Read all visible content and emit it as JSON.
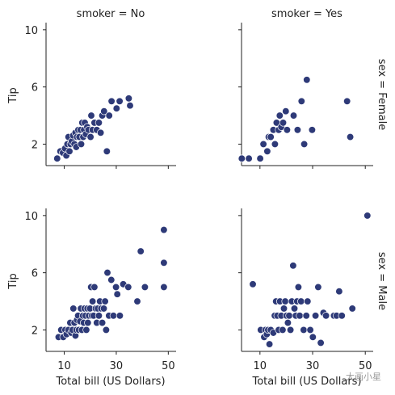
{
  "chart_data": {
    "type": "scatter",
    "layout": "facet-grid",
    "col_titles": [
      "smoker = No",
      "smoker = Yes"
    ],
    "row_titles": [
      "sex = Female",
      "sex = Male"
    ],
    "xlabel": "Total bill (US Dollars)",
    "ylabel": "Tip",
    "xlim": [
      3,
      53
    ],
    "ylim": [
      0.5,
      10.5
    ],
    "xticks": [
      10,
      30,
      50
    ],
    "yticks": [
      2,
      6,
      10
    ],
    "marker_color": "#2e3a78",
    "marker_edge_color": "#ffffff",
    "grid": false,
    "facets": [
      {
        "row": "sex = Female",
        "col": "smoker = No",
        "points": [
          [
            7.3,
            1.0
          ],
          [
            8.5,
            1.5
          ],
          [
            9.5,
            1.4
          ],
          [
            10.3,
            1.7
          ],
          [
            10.8,
            1.2
          ],
          [
            11.2,
            2.0
          ],
          [
            11.6,
            2.5
          ],
          [
            12.0,
            1.5
          ],
          [
            12.4,
            2.0
          ],
          [
            12.9,
            2.2
          ],
          [
            13.4,
            2.6
          ],
          [
            13.9,
            2.0
          ],
          [
            14.3,
            2.8
          ],
          [
            14.6,
            1.8
          ],
          [
            14.9,
            2.5
          ],
          [
            15.4,
            3.0
          ],
          [
            15.8,
            2.5
          ],
          [
            16.3,
            3.0
          ],
          [
            16.5,
            2.0
          ],
          [
            16.9,
            3.5
          ],
          [
            17.3,
            2.5
          ],
          [
            17.6,
            3.0
          ],
          [
            17.9,
            3.5
          ],
          [
            18.3,
            2.7
          ],
          [
            18.8,
            3.2
          ],
          [
            19.3,
            3.0
          ],
          [
            20.1,
            2.5
          ],
          [
            20.4,
            4.0
          ],
          [
            20.9,
            3.0
          ],
          [
            21.6,
            3.5
          ],
          [
            22.5,
            3.0
          ],
          [
            23.3,
            3.5
          ],
          [
            24.0,
            2.8
          ],
          [
            24.6,
            4.0
          ],
          [
            25.3,
            4.3
          ],
          [
            26.4,
            1.5
          ],
          [
            27.3,
            4.0
          ],
          [
            28.2,
            5.0
          ],
          [
            30.1,
            4.5
          ],
          [
            31.3,
            5.0
          ],
          [
            34.8,
            5.2
          ],
          [
            35.3,
            4.7
          ]
        ]
      },
      {
        "row": "sex = Female",
        "col": "smoker = Yes",
        "points": [
          [
            3.1,
            1.0
          ],
          [
            5.8,
            1.0
          ],
          [
            10.1,
            1.0
          ],
          [
            11.3,
            2.0
          ],
          [
            12.8,
            1.5
          ],
          [
            13.3,
            2.5
          ],
          [
            14.1,
            2.5
          ],
          [
            15.1,
            3.0
          ],
          [
            15.7,
            2.0
          ],
          [
            16.3,
            3.5
          ],
          [
            17.1,
            3.0
          ],
          [
            17.5,
            4.0
          ],
          [
            18.1,
            3.2
          ],
          [
            18.8,
            3.5
          ],
          [
            19.8,
            4.3
          ],
          [
            20.3,
            3.0
          ],
          [
            22.8,
            4.0
          ],
          [
            24.3,
            3.0
          ],
          [
            25.8,
            5.0
          ],
          [
            26.8,
            2.0
          ],
          [
            27.8,
            6.5
          ],
          [
            29.8,
            3.0
          ],
          [
            43.1,
            5.0
          ],
          [
            44.3,
            2.5
          ]
        ]
      },
      {
        "row": "sex = Male",
        "col": "smoker = No",
        "points": [
          [
            7.8,
            1.5
          ],
          [
            8.8,
            2.0
          ],
          [
            9.6,
            1.5
          ],
          [
            10.4,
            2.0
          ],
          [
            10.9,
            1.7
          ],
          [
            11.6,
            2.0
          ],
          [
            12.3,
            2.5
          ],
          [
            12.7,
            1.8
          ],
          [
            13.2,
            2.0
          ],
          [
            13.5,
            3.5
          ],
          [
            13.9,
            2.5
          ],
          [
            14.3,
            1.6
          ],
          [
            14.7,
            2.0
          ],
          [
            14.9,
            2.7
          ],
          [
            15.3,
            3.0
          ],
          [
            15.6,
            2.0
          ],
          [
            16.1,
            2.6
          ],
          [
            16.4,
            3.5
          ],
          [
            16.8,
            2.0
          ],
          [
            17.2,
            3.0
          ],
          [
            17.5,
            2.5
          ],
          [
            17.8,
            3.5
          ],
          [
            18.2,
            3.0
          ],
          [
            18.5,
            2.0
          ],
          [
            18.9,
            3.5
          ],
          [
            19.1,
            2.5
          ],
          [
            19.5,
            3.0
          ],
          [
            19.9,
            3.5
          ],
          [
            20.3,
            5.0
          ],
          [
            20.6,
            3.0
          ],
          [
            20.9,
            4.0
          ],
          [
            21.3,
            3.0
          ],
          [
            21.6,
            5.0
          ],
          [
            22.1,
            3.5
          ],
          [
            22.5,
            2.5
          ],
          [
            22.9,
            3.5
          ],
          [
            23.3,
            3.0
          ],
          [
            23.7,
            4.0
          ],
          [
            24.2,
            3.5
          ],
          [
            24.6,
            2.5
          ],
          [
            25.2,
            3.5
          ],
          [
            25.7,
            4.0
          ],
          [
            26.1,
            2.0
          ],
          [
            26.6,
            6.0
          ],
          [
            27.2,
            3.0
          ],
          [
            28.1,
            5.5
          ],
          [
            28.9,
            3.0
          ],
          [
            29.9,
            5.0
          ],
          [
            30.4,
            4.5
          ],
          [
            31.4,
            3.0
          ],
          [
            32.7,
            5.2
          ],
          [
            34.6,
            5.0
          ],
          [
            38.1,
            4.0
          ],
          [
            39.4,
            7.5
          ],
          [
            41.0,
            5.0
          ],
          [
            48.3,
            9.0
          ],
          [
            48.3,
            6.7
          ],
          [
            48.3,
            5.0
          ]
        ]
      },
      {
        "row": "sex = Male",
        "col": "smoker = Yes",
        "points": [
          [
            7.3,
            5.2
          ],
          [
            10.3,
            2.0
          ],
          [
            11.6,
            1.5
          ],
          [
            12.1,
            2.0
          ],
          [
            12.6,
            1.7
          ],
          [
            13.1,
            2.0
          ],
          [
            13.6,
            1.0
          ],
          [
            14.1,
            2.0
          ],
          [
            15.1,
            1.8
          ],
          [
            15.6,
            3.0
          ],
          [
            16.1,
            4.0
          ],
          [
            16.6,
            3.0
          ],
          [
            17.1,
            2.0
          ],
          [
            17.6,
            4.0
          ],
          [
            18.1,
            3.0
          ],
          [
            18.6,
            2.0
          ],
          [
            19.1,
            3.5
          ],
          [
            19.6,
            4.0
          ],
          [
            20.1,
            3.0
          ],
          [
            20.6,
            2.5
          ],
          [
            21.1,
            3.0
          ],
          [
            21.6,
            2.0
          ],
          [
            22.1,
            4.0
          ],
          [
            22.6,
            6.5
          ],
          [
            23.1,
            3.5
          ],
          [
            23.6,
            3.0
          ],
          [
            24.1,
            4.0
          ],
          [
            24.6,
            5.0
          ],
          [
            25.1,
            3.0
          ],
          [
            25.6,
            4.0
          ],
          [
            26.6,
            2.0
          ],
          [
            27.6,
            3.0
          ],
          [
            28.1,
            4.0
          ],
          [
            29.1,
            2.0
          ],
          [
            30.1,
            1.5
          ],
          [
            31.1,
            3.0
          ],
          [
            32.1,
            5.0
          ],
          [
            33.1,
            1.1
          ],
          [
            34.1,
            3.2
          ],
          [
            35.1,
            3.0
          ],
          [
            38.1,
            3.0
          ],
          [
            39.1,
            3.0
          ],
          [
            40.1,
            4.7
          ],
          [
            41.1,
            3.0
          ],
          [
            45.1,
            3.5
          ],
          [
            50.8,
            10.0
          ]
        ]
      }
    ]
  },
  "watermark": "大画小星"
}
